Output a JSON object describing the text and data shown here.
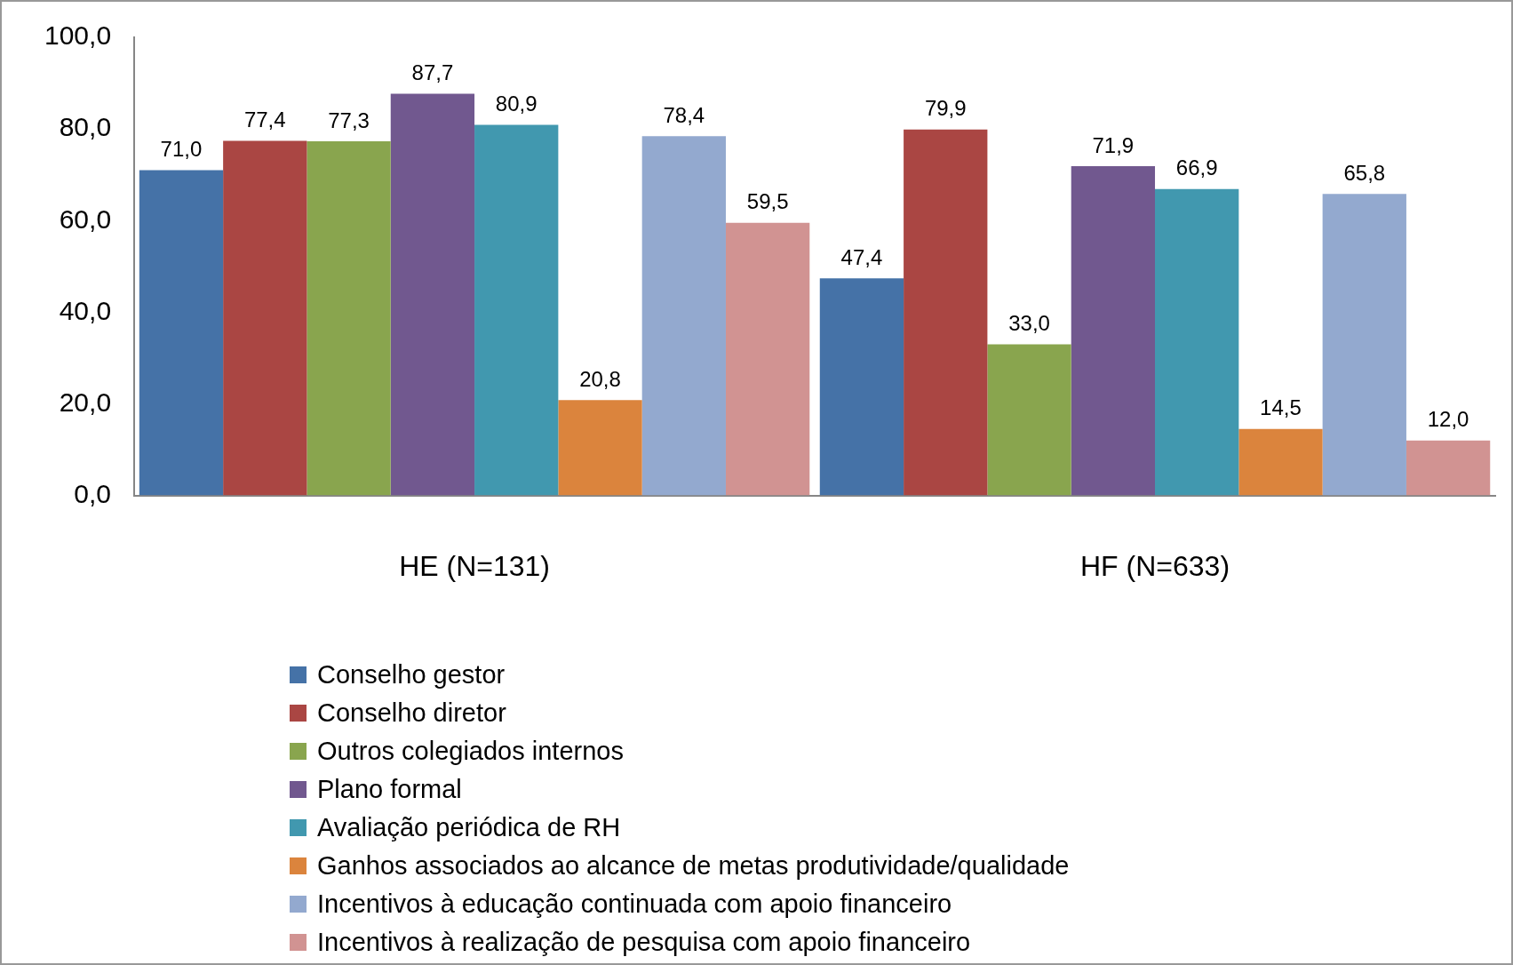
{
  "chart_data": {
    "type": "bar",
    "categories": [
      "HE (N=131)",
      "HF (N=633)"
    ],
    "series": [
      {
        "name": "Conselho gestor",
        "color": "#4572a7",
        "values": [
          71.0,
          47.4
        ],
        "value_labels": [
          "71,0",
          "47,4"
        ]
      },
      {
        "name": "Conselho diretor",
        "color": "#aa4643",
        "values": [
          77.4,
          79.9
        ],
        "value_labels": [
          "77,4",
          "79,9"
        ]
      },
      {
        "name": "Outros colegiados internos",
        "color": "#89a54e",
        "values": [
          77.3,
          33.0
        ],
        "value_labels": [
          "77,3",
          "33,0"
        ]
      },
      {
        "name": "Plano formal",
        "color": "#71588f",
        "values": [
          87.7,
          71.9
        ],
        "value_labels": [
          "87,7",
          "71,9"
        ]
      },
      {
        "name": "Avaliação periódica de RH",
        "color": "#4198af",
        "values": [
          80.9,
          66.9
        ],
        "value_labels": [
          "80,9",
          "66,9"
        ]
      },
      {
        "name": "Ganhos associados ao alcance de metas produtividade/qualidade",
        "color": "#db843d",
        "values": [
          20.8,
          14.5
        ],
        "value_labels": [
          "20,8",
          "14,5"
        ]
      },
      {
        "name": "Incentivos à educação continuada com apoio financeiro",
        "color": "#93a9cf",
        "values": [
          78.4,
          65.8
        ],
        "value_labels": [
          "78,4",
          "65,8"
        ]
      },
      {
        "name": "Incentivos à realização de pesquisa com apoio financeiro",
        "color": "#d19392",
        "values": [
          59.5,
          12.0
        ],
        "value_labels": [
          "59,5",
          "12,0"
        ]
      }
    ],
    "ylim": [
      0,
      100
    ],
    "yticks": [
      {
        "value": 0,
        "label": "0,0"
      },
      {
        "value": 20,
        "label": "20,0"
      },
      {
        "value": 40,
        "label": "40,0"
      },
      {
        "value": 60,
        "label": "60,0"
      },
      {
        "value": 80,
        "label": "80,0"
      },
      {
        "value": 100,
        "label": "100,0"
      }
    ],
    "grid": false,
    "legend": "bottom"
  }
}
